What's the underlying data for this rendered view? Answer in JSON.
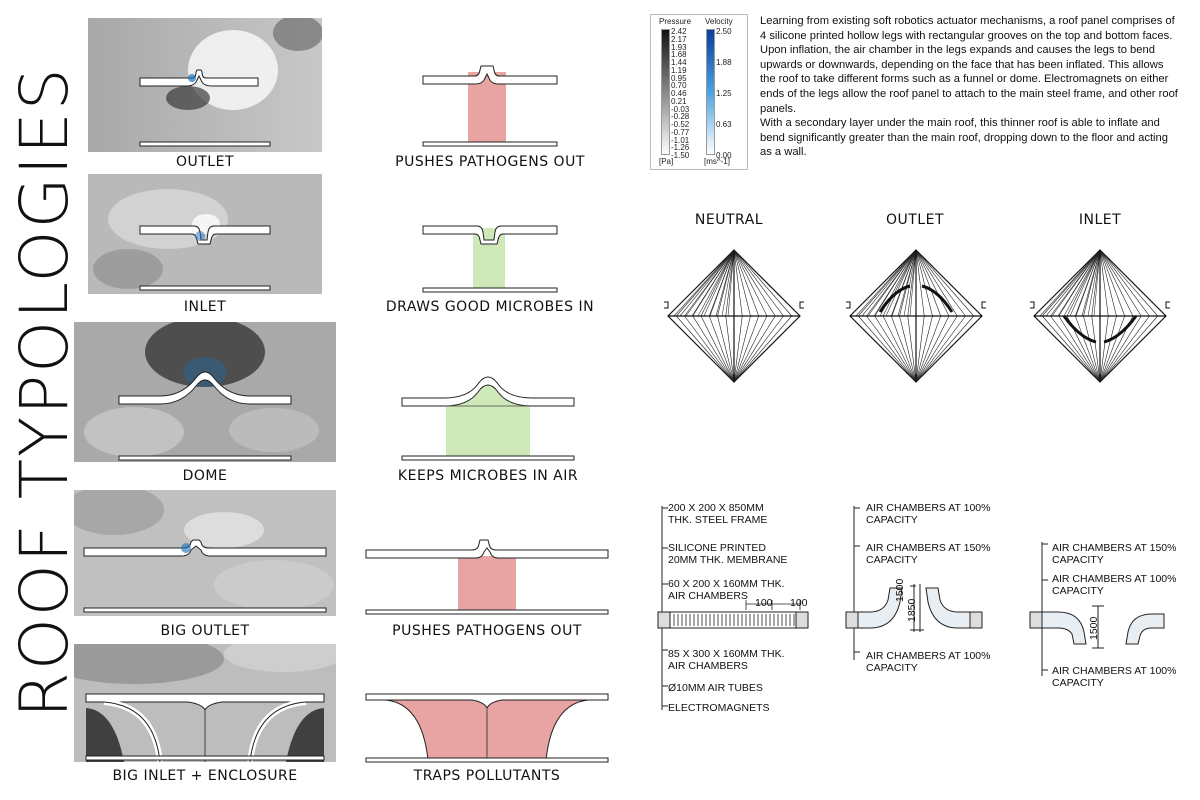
{
  "title": "ROOF TYPOLOGIES",
  "rows": [
    {
      "sim_label": "OUTLET",
      "effect_label": "PUSHES PATHOGENS OUT",
      "effect_color": "#e8a3a3"
    },
    {
      "sim_label": "INLET",
      "effect_label": "DRAWS GOOD MICROBES IN",
      "effect_color": "#cfe8b8"
    },
    {
      "sim_label": "DOME",
      "effect_label": "KEEPS MICROBES IN AIR",
      "effect_color": "#cfe8b8"
    },
    {
      "sim_label": "BIG OUTLET",
      "effect_label": "PUSHES PATHOGENS OUT",
      "effect_color": "#e8a3a3"
    },
    {
      "sim_label": "BIG INLET + ENCLOSURE",
      "effect_label": "TRAPS POLLUTANTS",
      "effect_color": "#e8a3a3"
    }
  ],
  "legend": {
    "pressure_title": "Pressure",
    "pressure_values": [
      "2.42",
      "2.17",
      "1.93",
      "1.68",
      "1.44",
      "1.19",
      "0.95",
      "0.70",
      "0.46",
      "0.21",
      "-0.03",
      "-0.28",
      "-0.52",
      "-0.77",
      "-1.01",
      "-1.26",
      "-1.50"
    ],
    "pressure_unit": "[Pa]",
    "velocity_title": "Velocity",
    "velocity_values": [
      "2.50",
      "1.88",
      "1.25",
      "0.63",
      "0.00"
    ],
    "velocity_unit": "[ms^-1]"
  },
  "description": {
    "p1": "Learning from existing soft robotics actuator mechanisms, a roof panel comprises of 4 silicone printed hollow legs with rectangular grooves on the top and bottom faces. Upon inflation, the air chamber in the legs expands and causes the legs to bend upwards or downwards, depending on the face that has been inflated. This allows the roof to take different forms such as a funnel or dome. Electromagnets on either ends of the legs allow the roof panel to attach to the main steel frame, and other roof panels.",
    "p2": "With a secondary layer under the main roof, this thinner roof is able to inflate and bend significantly greater than the main roof, dropping down to the floor and acting as a wall."
  },
  "plans": [
    "NEUTRAL",
    "OUTLET",
    "INLET"
  ],
  "annotations": {
    "neutral": [
      "200 X 200 X 850MM\nTHK. STEEL FRAME",
      "SILICONE PRINTED\n20MM THK. MEMBRANE",
      "60 X 200 X 160MM THK.\nAIR CHAMBERS",
      "85 X 300 X 160MM THK.\nAIR CHAMBERS",
      "Ø10MM AIR TUBES",
      "ELECTROMAGNETS"
    ],
    "outlet": [
      "AIR CHAMBERS AT 100%\nCAPACITY",
      "AIR CHAMBERS AT 150%\nCAPACITY",
      "AIR CHAMBERS AT 100%\nCAPACITY"
    ],
    "inlet": [
      "AIR CHAMBERS AT 150%\nCAPACITY",
      "AIR CHAMBERS AT 100%\nCAPACITY",
      "AIR CHAMBERS AT 100%\nCAPACITY"
    ],
    "dims": {
      "d100a": "100",
      "d100b": "100",
      "d1500a": "1500",
      "d1850": "1850",
      "d1500b": "1500"
    }
  }
}
